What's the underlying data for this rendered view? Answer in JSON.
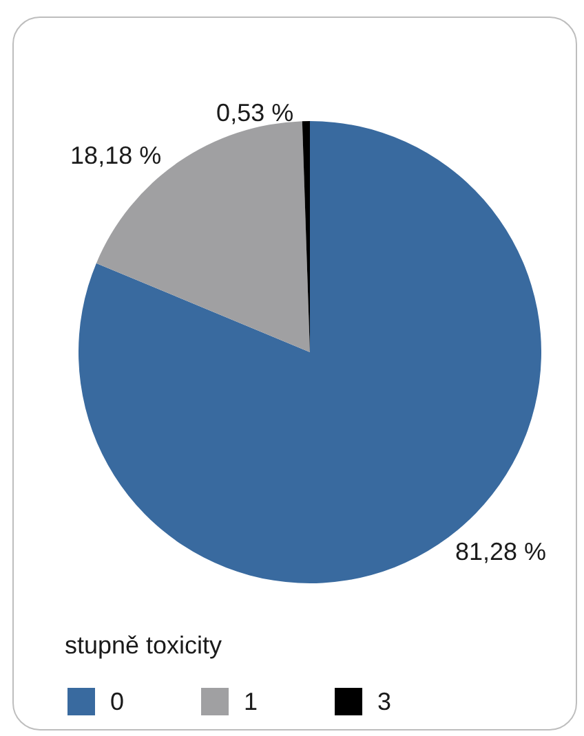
{
  "chart_data": {
    "type": "pie",
    "categories": [
      "0",
      "1",
      "3"
    ],
    "values": [
      81.28,
      18.18,
      0.53
    ],
    "colors": [
      "#396a9f",
      "#a0a0a2",
      "#000000"
    ],
    "value_labels": [
      "81,28 %",
      "18,18 %",
      "0,53 %"
    ],
    "legend_title": "stupně toxicity",
    "legend": "bottom left"
  }
}
